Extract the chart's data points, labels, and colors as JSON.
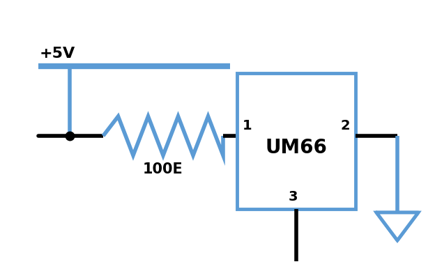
{
  "bg_color": "#ffffff",
  "blue_color": "#5b9bd5",
  "black_color": "#000000",
  "vcc_label": "+5V",
  "resistor_label": "100E",
  "ic_label": "UM66",
  "pin1_label": "1",
  "pin2_label": "2",
  "pin3_label": "3",
  "figsize": [
    6.24,
    3.99
  ],
  "dpi": 100
}
